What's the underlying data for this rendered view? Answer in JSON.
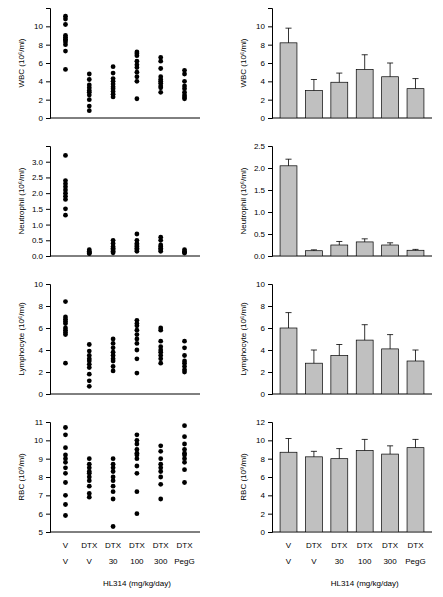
{
  "chart_data": [
    {
      "type": "scatter",
      "ylabel": "WBC (10⁶/ml)",
      "ylim": [
        0,
        12
      ],
      "yticks": [
        0,
        2,
        4,
        6,
        8,
        10
      ],
      "color": "#000000",
      "marker": "circle",
      "categories": [
        null,
        null,
        null,
        null,
        null,
        null
      ],
      "values": [
        [
          11.1,
          10.8,
          10.2,
          9.0,
          8.8,
          8.6,
          8.5,
          8.3,
          8.0,
          7.3,
          5.3
        ],
        [
          4.8,
          4.2,
          3.6,
          3.3,
          3.0,
          2.8,
          2.5,
          2.0,
          1.3,
          0.8
        ],
        [
          5.6,
          4.9,
          4.3,
          4.0,
          3.7,
          3.4,
          3.2,
          2.9,
          2.6,
          2.3
        ],
        [
          7.2,
          7.0,
          6.8,
          6.2,
          5.8,
          5.5,
          5.0,
          4.5,
          4.0,
          2.1
        ],
        [
          6.6,
          6.2,
          5.4,
          4.5,
          4.2,
          4.0,
          3.8,
          3.5,
          3.3,
          2.8
        ],
        [
          5.2,
          4.8,
          4.0,
          3.5,
          3.2,
          2.8,
          2.5,
          2.3,
          2.1
        ]
      ]
    },
    {
      "type": "bar",
      "ylabel": "WBC (10⁶/ml)",
      "ylim": [
        0,
        12
      ],
      "yticks": [
        0,
        2,
        4,
        6,
        8,
        10
      ],
      "color": "#c0c0c0",
      "categories": [
        null,
        null,
        null,
        null,
        null,
        null
      ],
      "values": [
        8.2,
        3.0,
        3.9,
        5.3,
        4.5,
        3.2
      ],
      "errors": [
        1.6,
        1.2,
        1.0,
        1.6,
        1.5,
        1.1
      ]
    },
    {
      "type": "scatter",
      "ylabel": "Neutrophil (10⁶/ml)",
      "ylim": [
        0,
        3.5
      ],
      "yticks": [
        {
          "value": 0,
          "label": "0.0"
        },
        0.5,
        {
          "value": 1,
          "label": "1.0"
        },
        1.5,
        {
          "value": 2,
          "label": "2.0"
        },
        2.5,
        {
          "value": 3,
          "label": "3.0"
        }
      ],
      "color": "#000000",
      "marker": "circle",
      "categories": [
        null,
        null,
        null,
        null,
        null,
        null
      ],
      "values": [
        [
          3.2,
          2.4,
          2.3,
          2.2,
          2.1,
          2.0,
          1.9,
          1.8,
          1.5,
          1.3
        ],
        [
          0.2,
          0.15,
          0.1,
          0.1,
          0.08
        ],
        [
          0.5,
          0.4,
          0.3,
          0.25,
          0.2,
          0.15,
          0.1
        ],
        [
          0.7,
          0.5,
          0.4,
          0.35,
          0.3,
          0.25,
          0.2,
          0.15
        ],
        [
          0.6,
          0.5,
          0.35,
          0.3,
          0.25,
          0.2,
          0.15
        ],
        [
          0.2,
          0.15,
          0.1,
          0.1
        ]
      ]
    },
    {
      "type": "bar",
      "ylabel": "Neutrophil (10⁶/ml)",
      "ylim": [
        0,
        2.5
      ],
      "yticks": [
        {
          "value": 0,
          "label": "0.0"
        },
        0.5,
        {
          "value": 1,
          "label": "1.0"
        },
        1.5,
        {
          "value": 2,
          "label": "2.0"
        },
        2.5
      ],
      "color": "#c0c0c0",
      "categories": [
        null,
        null,
        null,
        null,
        null,
        null
      ],
      "values": [
        2.05,
        0.12,
        0.25,
        0.32,
        0.25,
        0.13
      ],
      "errors": [
        0.15,
        0.02,
        0.08,
        0.07,
        0.05,
        0.02
      ]
    },
    {
      "type": "scatter",
      "ylabel": "Lymphocyte (10⁶/ml)",
      "ylim": [
        0,
        10
      ],
      "yticks": [
        0,
        2,
        4,
        6,
        8,
        10
      ],
      "color": "#000000",
      "marker": "circle",
      "categories": [
        null,
        null,
        null,
        null,
        null,
        null
      ],
      "values": [
        [
          8.4,
          7.0,
          6.8,
          6.6,
          6.4,
          6.0,
          5.8,
          5.6,
          5.4,
          2.8
        ],
        [
          4.5,
          3.9,
          3.5,
          3.2,
          3.0,
          2.7,
          2.4,
          1.8,
          1.2,
          0.7
        ],
        [
          5.0,
          4.6,
          4.2,
          3.8,
          3.5,
          3.2,
          3.0,
          2.5,
          2.1
        ],
        [
          6.7,
          6.4,
          6.2,
          5.8,
          5.4,
          5.0,
          4.6,
          4.0,
          3.2,
          1.9
        ],
        [
          6.0,
          5.8,
          4.8,
          4.3,
          4.0,
          3.8,
          3.5,
          3.2,
          2.8
        ],
        [
          4.8,
          4.2,
          3.5,
          3.0,
          2.8,
          2.5,
          2.2,
          2.0
        ]
      ]
    },
    {
      "type": "bar",
      "ylabel": "Lymphocyte (10⁶/ml)",
      "ylim": [
        0,
        10
      ],
      "yticks": [
        0,
        2,
        4,
        6,
        8,
        10
      ],
      "color": "#c0c0c0",
      "categories": [
        null,
        null,
        null,
        null,
        null,
        null
      ],
      "values": [
        6.0,
        2.8,
        3.5,
        4.9,
        4.1,
        3.0
      ],
      "errors": [
        1.4,
        1.2,
        1.0,
        1.4,
        1.3,
        1.0
      ]
    },
    {
      "type": "scatter",
      "ylabel": "RBC (10⁹/ml)",
      "ylim": [
        5,
        11
      ],
      "yticks": [
        5,
        6,
        7,
        8,
        9,
        10,
        11
      ],
      "color": "#000000",
      "marker": "circle",
      "categories": [
        [
          "V",
          "V"
        ],
        [
          "DTX",
          "V"
        ],
        [
          "DTX",
          "30"
        ],
        [
          "DTX",
          "100"
        ],
        [
          "DTX",
          "300"
        ],
        [
          "DTX",
          "PegG"
        ]
      ],
      "xlabel": "HL314 (mg/kg/day)",
      "values": [
        [
          10.7,
          10.3,
          9.6,
          9.2,
          9.0,
          8.8,
          8.5,
          8.2,
          7.7,
          7.0,
          6.5,
          5.9
        ],
        [
          9.0,
          8.7,
          8.5,
          8.3,
          8.2,
          8.0,
          7.8,
          7.5,
          7.1,
          6.9
        ],
        [
          9.0,
          8.7,
          8.5,
          8.3,
          8.0,
          7.8,
          7.5,
          7.2,
          6.8,
          5.3
        ],
        [
          10.3,
          10.0,
          9.8,
          9.5,
          9.3,
          9.2,
          9.0,
          8.6,
          8.2,
          7.2,
          6.0
        ],
        [
          9.7,
          9.4,
          9.0,
          8.7,
          8.5,
          8.3,
          8.0,
          7.6,
          6.8
        ],
        [
          10.8,
          10.2,
          9.8,
          9.5,
          9.3,
          9.2,
          9.0,
          8.8,
          8.4,
          7.7
        ]
      ]
    },
    {
      "type": "bar",
      "ylabel": "RBC (10⁹/ml)",
      "ylim": [
        0,
        12
      ],
      "yticks": [
        0,
        2,
        4,
        6,
        8,
        10,
        12
      ],
      "color": "#c0c0c0",
      "categories": [
        [
          "V",
          "V"
        ],
        [
          "DTX",
          "V"
        ],
        [
          "DTX",
          "30"
        ],
        [
          "DTX",
          "100"
        ],
        [
          "DTX",
          "300"
        ],
        [
          "DTX",
          "PegG"
        ]
      ],
      "xlabel": "HL314 (mg/kg/day)",
      "values": [
        8.7,
        8.2,
        8.0,
        8.9,
        8.5,
        9.2
      ],
      "errors": [
        1.5,
        0.6,
        1.1,
        1.2,
        0.9,
        0.9
      ]
    }
  ]
}
